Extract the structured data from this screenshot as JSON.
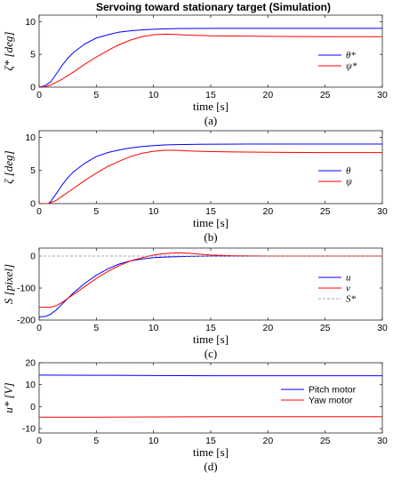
{
  "figure": {
    "title": "Servoing toward stationary target (Simulation)"
  },
  "colors": {
    "blue": "#0000ff",
    "red": "#ff0000",
    "ref": "#888888"
  },
  "chart_data": [
    {
      "type": "line",
      "panel_label": "(a)",
      "xlabel": "time [s]",
      "ylabel": "ζ* [deg]",
      "xlim": [
        0,
        30
      ],
      "ylim": [
        0,
        11
      ],
      "xticks": [
        0,
        5,
        10,
        15,
        20,
        25,
        30
      ],
      "yticks": [
        0,
        5,
        10
      ],
      "legend": "right",
      "series": [
        {
          "name": "θ*",
          "color": "blue",
          "x": [
            0,
            0.5,
            1,
            1.5,
            2,
            2.5,
            3,
            4,
            5,
            6,
            7,
            8,
            9,
            10,
            11,
            12,
            14,
            16,
            18,
            20,
            25,
            30
          ],
          "y": [
            0,
            0.2,
            0.8,
            2.0,
            3.3,
            4.4,
            5.3,
            6.6,
            7.5,
            8.0,
            8.4,
            8.6,
            8.75,
            8.85,
            8.9,
            8.95,
            8.97,
            8.98,
            8.98,
            8.98,
            8.98,
            8.98
          ]
        },
        {
          "name": "ψ*",
          "color": "red",
          "x": [
            0,
            0.5,
            1,
            2,
            3,
            4,
            5,
            6,
            7,
            8,
            9,
            10,
            11,
            12,
            13,
            15,
            17,
            20,
            25,
            30
          ],
          "y": [
            0,
            0.05,
            0.3,
            1.2,
            2.3,
            3.5,
            4.6,
            5.6,
            6.5,
            7.2,
            7.7,
            8.0,
            8.1,
            8.05,
            7.95,
            7.85,
            7.8,
            7.75,
            7.7,
            7.7
          ]
        }
      ]
    },
    {
      "type": "line",
      "panel_label": "(b)",
      "xlabel": "time [s]",
      "ylabel": "ζ [deg]",
      "xlim": [
        0,
        30
      ],
      "ylim": [
        0,
        11
      ],
      "xticks": [
        0,
        5,
        10,
        15,
        20,
        25,
        30
      ],
      "yticks": [
        0,
        5,
        10
      ],
      "legend": "right",
      "series": [
        {
          "name": "θ",
          "color": "blue",
          "x": [
            0,
            0.8,
            1,
            1.5,
            2,
            2.5,
            3,
            4,
            5,
            6,
            7,
            8,
            9,
            10,
            11,
            12,
            14,
            16,
            18,
            20,
            25,
            30
          ],
          "y": [
            0,
            0,
            0.3,
            1.5,
            2.8,
            3.9,
            4.8,
            6.1,
            7.1,
            7.7,
            8.1,
            8.4,
            8.6,
            8.75,
            8.85,
            8.9,
            8.95,
            8.97,
            8.98,
            8.98,
            8.98,
            8.98
          ]
        },
        {
          "name": "ψ",
          "color": "red",
          "x": [
            0,
            0.8,
            1,
            1.5,
            2,
            3,
            4,
            5,
            6,
            7,
            8,
            9,
            10,
            11,
            12,
            13,
            15,
            17,
            20,
            25,
            30
          ],
          "y": [
            0,
            0,
            0.1,
            0.5,
            1.1,
            2.3,
            3.5,
            4.6,
            5.6,
            6.4,
            7.1,
            7.6,
            7.9,
            8.05,
            8.05,
            7.95,
            7.85,
            7.8,
            7.75,
            7.7,
            7.7
          ]
        }
      ]
    },
    {
      "type": "line",
      "panel_label": "(c)",
      "xlabel": "time [s]",
      "ylabel": "S [pixel]",
      "xlim": [
        0,
        30
      ],
      "ylim": [
        -200,
        25
      ],
      "xticks": [
        0,
        5,
        10,
        15,
        20,
        25,
        30
      ],
      "yticks": [
        -200,
        -100,
        0
      ],
      "legend": "right",
      "series": [
        {
          "name": "u",
          "color": "blue",
          "x": [
            0,
            0.5,
            1,
            1.5,
            2,
            3,
            4,
            5,
            6,
            7,
            8,
            9,
            10,
            11,
            12,
            13,
            15,
            18,
            20,
            25,
            30
          ],
          "y": [
            -190,
            -189,
            -182,
            -168,
            -150,
            -115,
            -85,
            -60,
            -40,
            -25,
            -15,
            -9,
            -5,
            -3,
            -2,
            -1,
            0,
            0,
            0,
            0,
            0
          ]
        },
        {
          "name": "v",
          "color": "red",
          "x": [
            0,
            1,
            1.5,
            2,
            3,
            4,
            5,
            6,
            7,
            8,
            9,
            10,
            11,
            12,
            13,
            14,
            15,
            17,
            20,
            25,
            30
          ],
          "y": [
            -160,
            -160,
            -155,
            -145,
            -120,
            -95,
            -70,
            -48,
            -30,
            -15,
            -5,
            3,
            8,
            10,
            9,
            6,
            3,
            1,
            0,
            0,
            0
          ]
        },
        {
          "name": "S*",
          "color": "ref",
          "dashed": true,
          "x": [
            0,
            30
          ],
          "y": [
            0,
            0
          ]
        }
      ]
    },
    {
      "type": "line",
      "panel_label": "(d)",
      "xlabel": "time [s]",
      "ylabel": "u* [V]",
      "xlim": [
        0,
        30
      ],
      "ylim": [
        -12,
        20
      ],
      "xticks": [
        0,
        5,
        10,
        15,
        20,
        25,
        30
      ],
      "yticks": [
        -10,
        0,
        10,
        20
      ],
      "legend": "right",
      "series": [
        {
          "name": "Pitch motor",
          "color": "blue",
          "x": [
            0,
            5,
            10,
            15,
            20,
            25,
            30
          ],
          "y": [
            14.4,
            14.3,
            14.2,
            14.1,
            14.1,
            14.1,
            14.1
          ]
        },
        {
          "name": "Yaw motor",
          "color": "red",
          "x": [
            0,
            5,
            10,
            15,
            20,
            25,
            30
          ],
          "y": [
            -4.8,
            -4.8,
            -4.7,
            -4.6,
            -4.6,
            -4.6,
            -4.6
          ]
        }
      ]
    }
  ]
}
